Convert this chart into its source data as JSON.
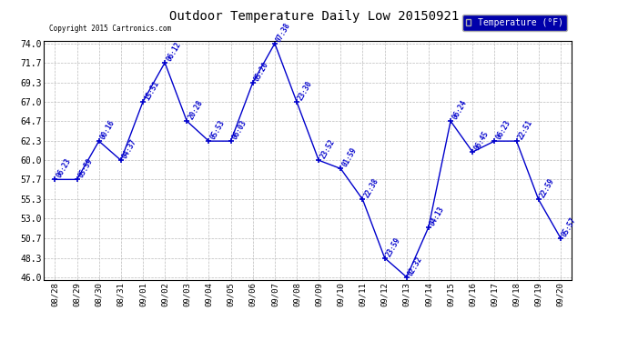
{
  "title": "Outdoor Temperature Daily Low 20150921",
  "copyright_text": "Copyright 2015 Cartronics.com",
  "legend_label": "Temperature (°F)",
  "dates": [
    "08/28",
    "08/29",
    "08/30",
    "08/31",
    "09/01",
    "09/02",
    "09/03",
    "09/04",
    "09/05",
    "09/06",
    "09/07",
    "09/08",
    "09/09",
    "09/10",
    "09/11",
    "09/12",
    "09/13",
    "09/14",
    "09/15",
    "09/16",
    "09/17",
    "09/18",
    "09/19",
    "09/20"
  ],
  "temps": [
    57.7,
    57.7,
    62.3,
    60.0,
    67.0,
    71.7,
    64.7,
    62.3,
    62.3,
    69.3,
    74.0,
    67.0,
    60.0,
    59.0,
    55.3,
    48.3,
    46.0,
    52.0,
    64.7,
    61.0,
    62.3,
    62.3,
    55.3,
    50.7
  ],
  "time_labels": [
    "06:23",
    "05:59",
    "00:16",
    "04:37",
    "15:51",
    "06:12",
    "20:28",
    "05:53",
    "06:03",
    "05:20",
    "07:38",
    "23:30",
    "23:52",
    "01:59",
    "22:38",
    "23:59",
    "02:32",
    "04:13",
    "06:24",
    "06:45",
    "06:23",
    "22:51",
    "22:59",
    "05:57"
  ],
  "ylim": [
    46.0,
    74.0
  ],
  "yticks": [
    46.0,
    48.3,
    50.7,
    53.0,
    55.3,
    57.7,
    60.0,
    62.3,
    64.7,
    67.0,
    69.3,
    71.7,
    74.0
  ],
  "line_color": "#0000cc",
  "marker_color": "#0000cc",
  "bg_color": "#ffffff",
  "grid_color": "#bbbbbb",
  "label_color": "#0000cc",
  "title_color": "#000000",
  "legend_bg": "#0000aa",
  "legend_fg": "#ffffff"
}
